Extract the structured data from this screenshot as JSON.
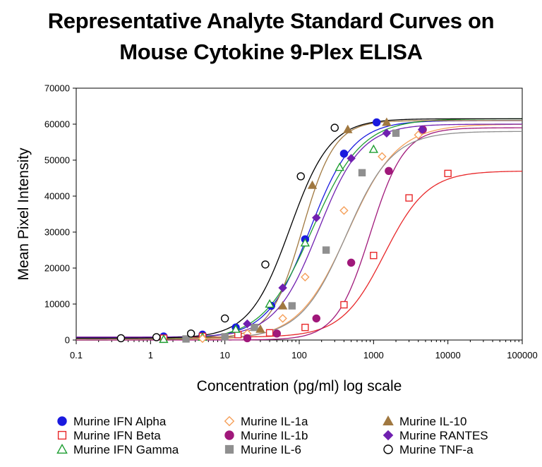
{
  "chart_data": {
    "type": "scatter",
    "title_lines": [
      "Representative Analyte Standard Curves on",
      "Mouse Cytokine 9-Plex ELISA"
    ],
    "xlabel": "Concentration (pg/ml) log scale",
    "ylabel": "Mean Pixel Intensity",
    "x_scale": "log",
    "xlim": [
      0.1,
      100000
    ],
    "ylim": [
      0,
      70000
    ],
    "x_ticks": [
      0.1,
      1,
      10,
      100,
      1000,
      10000,
      100000
    ],
    "x_tick_labels": [
      "0.1",
      "1",
      "10",
      "100",
      "1000",
      "10000",
      "100000"
    ],
    "y_ticks": [
      0,
      10000,
      20000,
      30000,
      40000,
      50000,
      60000,
      70000
    ],
    "y_tick_labels": [
      "0",
      "10000",
      "20000",
      "30000",
      "40000",
      "50000",
      "60000",
      "70000"
    ],
    "grid": false,
    "legend_position": "bottom",
    "series": [
      {
        "name": "Murine IFN Alpha",
        "marker": "circle-filled",
        "color": "#1a1adf",
        "fit": {
          "bottom": 600,
          "top": 61000,
          "ec50": 140,
          "hill": 1.5
        },
        "points": [
          [
            1.5,
            1000
          ],
          [
            5,
            1500
          ],
          [
            14,
            3500
          ],
          [
            42,
            9500
          ],
          [
            120,
            28000
          ],
          [
            400,
            51800
          ],
          [
            1100,
            60500
          ]
        ]
      },
      {
        "name": "Murine IFN Beta",
        "marker": "square-open",
        "color": "#e8282a",
        "fit": {
          "bottom": 800,
          "top": 47000,
          "ec50": 1400,
          "hill": 1.5
        },
        "points": [
          [
            1.5,
            500
          ],
          [
            5,
            1000
          ],
          [
            15,
            1500
          ],
          [
            40,
            2000
          ],
          [
            120,
            3500
          ],
          [
            400,
            9800
          ],
          [
            1000,
            23500
          ],
          [
            3000,
            39500
          ],
          [
            10000,
            46300
          ]
        ]
      },
      {
        "name": "Murine IFN Gamma",
        "marker": "triangle-open",
        "color": "#1e9e32",
        "fit": {
          "bottom": 0,
          "top": 61500,
          "ec50": 150,
          "hill": 1.3
        },
        "points": [
          [
            1.5,
            200
          ],
          [
            5,
            800
          ],
          [
            14,
            3000
          ],
          [
            40,
            10000
          ],
          [
            120,
            27000
          ],
          [
            350,
            48000
          ],
          [
            1000,
            53000
          ]
        ]
      },
      {
        "name": "Murine IL-1a",
        "marker": "diamond-open",
        "color": "#f5a05a",
        "fit": {
          "bottom": 0,
          "top": 60000,
          "ec50": 450,
          "hill": 1.3
        },
        "points": [
          [
            5,
            400
          ],
          [
            20,
            1800
          ],
          [
            60,
            6000
          ],
          [
            120,
            17500
          ],
          [
            400,
            36000
          ],
          [
            1300,
            51000
          ],
          [
            4000,
            57000
          ]
        ]
      },
      {
        "name": "Murine IL-1b",
        "marker": "circle-filled",
        "color": "#a0187a",
        "fit": {
          "bottom": 0,
          "top": 59000,
          "ec50": 900,
          "hill": 1.9
        },
        "points": [
          [
            20,
            500
          ],
          [
            50,
            1800
          ],
          [
            170,
            6000
          ],
          [
            500,
            21500
          ],
          [
            1600,
            47000
          ],
          [
            4600,
            58500
          ]
        ]
      },
      {
        "name": "Murine IL-6",
        "marker": "square-filled",
        "color": "#8f8f8f",
        "fit": {
          "bottom": 400,
          "top": 58000,
          "ec50": 430,
          "hill": 1.4
        },
        "points": [
          [
            3,
            300
          ],
          [
            10,
            900
          ],
          [
            25,
            3500
          ],
          [
            80,
            9500
          ],
          [
            230,
            25000
          ],
          [
            700,
            46500
          ],
          [
            2000,
            57500
          ]
        ]
      },
      {
        "name": "Murine IL-10",
        "marker": "triangle-filled",
        "color": "#a07840",
        "fit": {
          "bottom": 400,
          "top": 61000,
          "ec50": 110,
          "hill": 2.0
        },
        "points": [
          [
            30,
            3000
          ],
          [
            60,
            9500
          ],
          [
            150,
            43000
          ],
          [
            450,
            58500
          ],
          [
            1500,
            60500
          ]
        ]
      },
      {
        "name": "Murine RANTES",
        "marker": "diamond-filled",
        "color": "#7020b0",
        "fit": {
          "bottom": 800,
          "top": 60000,
          "ec50": 180,
          "hill": 1.5
        },
        "points": [
          [
            20,
            4500
          ],
          [
            60,
            14500
          ],
          [
            170,
            34000
          ],
          [
            500,
            50500
          ],
          [
            1500,
            57500
          ],
          [
            4500,
            58500
          ]
        ]
      },
      {
        "name": "Murine TNF-a",
        "marker": "circle-open",
        "color": "#000000",
        "fit": {
          "bottom": 500,
          "top": 61500,
          "ec50": 75,
          "hill": 1.6
        },
        "points": [
          [
            0.4,
            500
          ],
          [
            1.2,
            800
          ],
          [
            3.5,
            1800
          ],
          [
            10,
            6000
          ],
          [
            35,
            21000
          ],
          [
            105,
            45500
          ],
          [
            300,
            59000
          ]
        ]
      }
    ]
  }
}
